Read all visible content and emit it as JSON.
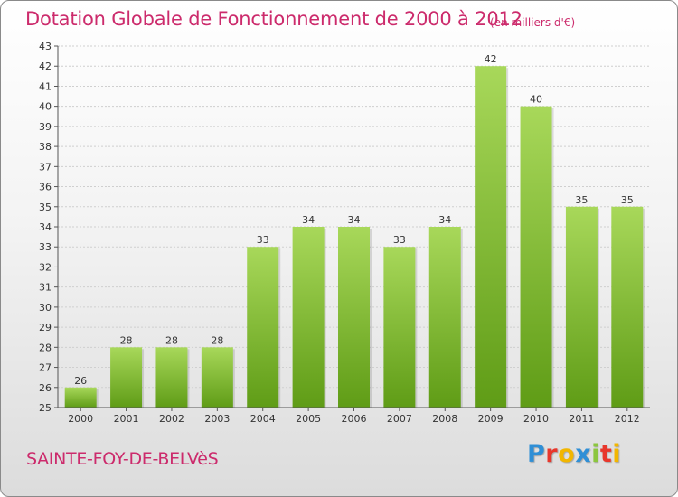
{
  "title": "Dotation Globale de Fonctionnement de 2000 à 2012",
  "subtitle": "(en milliers d'€)",
  "commune": "SAINTE-FOY-DE-BELVèS",
  "brand": {
    "text": "Proxiti",
    "letters": [
      {
        "ch": "P",
        "color": "#2f8fd6"
      },
      {
        "ch": "r",
        "color": "#e8372c"
      },
      {
        "ch": "o",
        "color": "#f2b600"
      },
      {
        "ch": "x",
        "color": "#2f8fd6"
      },
      {
        "ch": "i",
        "color": "#8cc63f"
      },
      {
        "ch": "t",
        "color": "#e8372c"
      },
      {
        "ch": "i",
        "color": "#f2b600"
      }
    ]
  },
  "colors": {
    "accent": "#cc2b6c",
    "bar_top": "#a8d85a",
    "bar_bottom": "#5f9c16",
    "grid": "#cfcfcf"
  },
  "chart_data": {
    "type": "bar",
    "title": "Dotation Globale de Fonctionnement de 2000 à 2012",
    "xlabel": "",
    "ylabel": "",
    "categories": [
      "2000",
      "2001",
      "2002",
      "2003",
      "2004",
      "2005",
      "2006",
      "2007",
      "2008",
      "2009",
      "2010",
      "2011",
      "2012"
    ],
    "values": [
      26,
      28,
      28,
      28,
      33,
      34,
      34,
      33,
      34,
      42,
      40,
      35,
      35
    ],
    "ylim": [
      25,
      43
    ],
    "yticks": [
      25,
      26,
      27,
      28,
      29,
      30,
      31,
      32,
      33,
      34,
      35,
      36,
      37,
      38,
      39,
      40,
      41,
      42,
      43
    ],
    "grid": "horizontal",
    "legend": "none"
  }
}
